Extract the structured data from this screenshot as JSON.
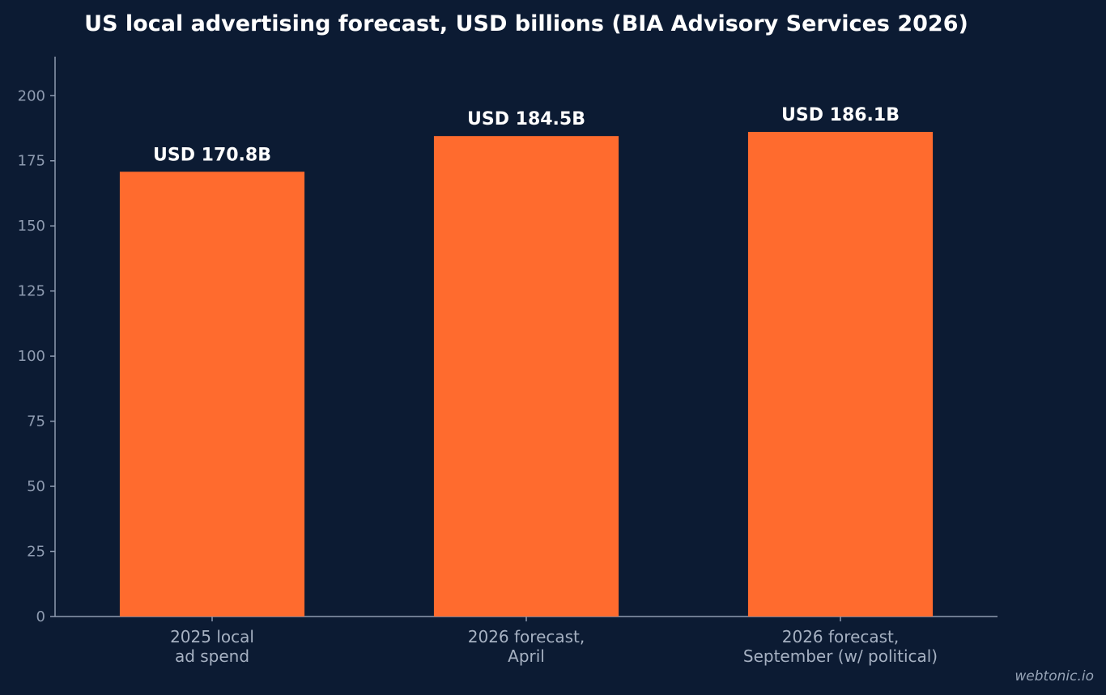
{
  "colors": {
    "background": "#0c1b33",
    "bar": "#ff6b2e",
    "axis": "#8e9bb0",
    "tick_text": "#8e9bb0",
    "category_text": "#a6b1c2",
    "label_text": "#ffffff"
  },
  "watermark": "webtonic.io",
  "chart_data": {
    "type": "bar",
    "title": "US local advertising forecast, USD billions (BIA Advisory Services 2026)",
    "xlabel": "",
    "ylabel": "",
    "categories": [
      [
        "2025 local",
        "ad spend"
      ],
      [
        "2026 forecast,",
        "April"
      ],
      [
        "2026 forecast,",
        "September (w/ political)"
      ]
    ],
    "values": [
      170.8,
      184.5,
      186.1
    ],
    "data_labels": [
      "USD 170.8B",
      "USD 184.5B",
      "USD 186.1B"
    ],
    "ylim": [
      0,
      215
    ],
    "yticks": [
      0,
      25,
      50,
      75,
      100,
      125,
      150,
      175,
      200
    ],
    "grid": false,
    "legend": "none"
  }
}
